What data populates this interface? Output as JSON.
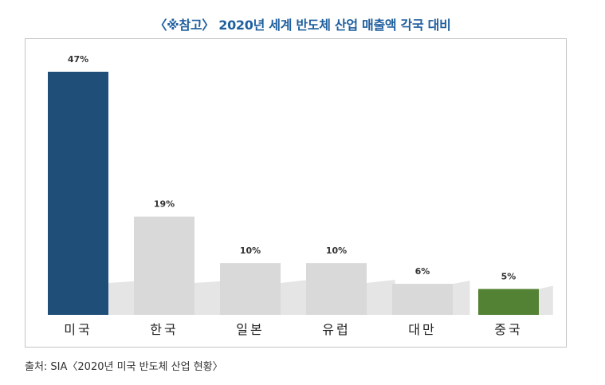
{
  "title": "〈※참고〉 2020년 세계 반도체 산업 매출액 각국 대비",
  "source": "출처: SIA〈2020년 미국 반도체 산업 현황〉",
  "colors": {
    "title": "#1e5f9e",
    "highlight_usa": "#1f4e79",
    "highlight_china": "#548235",
    "default_bar": "#d9d9d9",
    "shadow": "#cfcfcf"
  },
  "chart_data": {
    "type": "bar",
    "categories": [
      "미국",
      "한국",
      "일본",
      "유럽",
      "대만",
      "중국"
    ],
    "values": [
      47,
      19,
      10,
      10,
      6,
      5
    ],
    "value_labels": [
      "47%",
      "19%",
      "10%",
      "10%",
      "6%",
      "5%"
    ],
    "bar_colors": [
      "#1f4e79",
      "#d9d9d9",
      "#d9d9d9",
      "#d9d9d9",
      "#d9d9d9",
      "#548235"
    ],
    "ylim": [
      0,
      47
    ],
    "grid": false,
    "legend": "none"
  }
}
